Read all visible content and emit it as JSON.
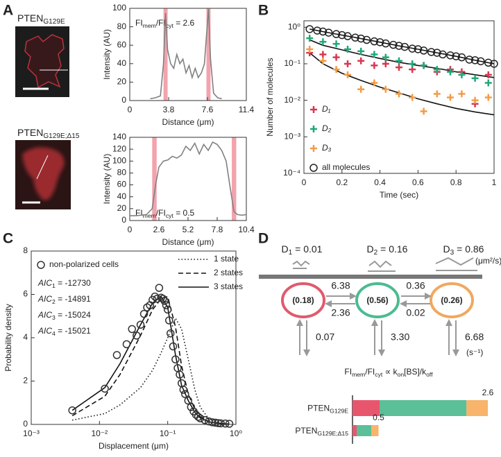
{
  "panel_labels": [
    "A",
    "B",
    "C",
    "D"
  ],
  "images": [
    {
      "label": [
        "PTEN",
        "G129E"
      ]
    },
    {
      "label": [
        "PTEN",
        "G129E;Δ15"
      ]
    }
  ],
  "chart_data": [
    {
      "type": "line",
      "x_label": "Distance (μm)",
      "y_label": "Intensity (AU)",
      "annotation": [
        "FI",
        "mem",
        "/FI",
        "cyt",
        " = 2.6"
      ],
      "xlim": [
        0,
        11.4
      ],
      "xticks": [
        0,
        3.8,
        7.6,
        11.4
      ],
      "ylim": [
        0,
        100
      ],
      "yticks": [
        0,
        20,
        40,
        60,
        80,
        100
      ],
      "highlight_x": [
        [
          3.3,
          3.7
        ],
        [
          7.5,
          7.9
        ]
      ],
      "highlight_color": "#f2a3ad",
      "series": [
        {
          "color": "#808080",
          "x": [
            2.0,
            2.5,
            3.0,
            3.3,
            3.5,
            3.7,
            4.0,
            4.3,
            4.6,
            4.9,
            5.2,
            5.5,
            5.8,
            6.1,
            6.4,
            6.7,
            7.0,
            7.3,
            7.5,
            7.7,
            7.9,
            8.2,
            8.6,
            9.0
          ],
          "values": [
            2,
            3,
            5,
            40,
            95,
            55,
            40,
            35,
            50,
            40,
            45,
            30,
            38,
            25,
            35,
            25,
            30,
            40,
            70,
            100,
            45,
            8,
            3,
            2
          ]
        }
      ]
    },
    {
      "type": "line",
      "x_label": "Distance (μm)",
      "y_label": "Intensity (AU)",
      "annotation": [
        "FI",
        "mem",
        "/FI",
        "cyt",
        " = 0.5"
      ],
      "xlim": [
        0,
        10.4
      ],
      "xticks": [
        0,
        2.6,
        5.2,
        7.8,
        10.4
      ],
      "ylim": [
        0,
        140
      ],
      "yticks": [
        0,
        20,
        40,
        60,
        80,
        100,
        120,
        140
      ],
      "highlight_x": [
        [
          2.0,
          2.4
        ],
        [
          9.1,
          9.5
        ]
      ],
      "highlight_color": "#f2a3ad",
      "series": [
        {
          "color": "#808080",
          "x": [
            0,
            0.5,
            1,
            1.5,
            2,
            2.3,
            2.6,
            3,
            3.4,
            3.8,
            4.2,
            4.6,
            5,
            5.4,
            5.8,
            6.2,
            6.6,
            7,
            7.4,
            7.8,
            8.2,
            8.6,
            9,
            9.3,
            9.6,
            10,
            10.4
          ],
          "values": [
            8,
            8,
            9,
            10,
            20,
            60,
            90,
            100,
            102,
            108,
            105,
            110,
            125,
            118,
            130,
            112,
            128,
            118,
            132,
            128,
            118,
            100,
            50,
            15,
            10,
            9,
            10
          ]
        }
      ]
    },
    {
      "type": "scatter",
      "y_scale": "log",
      "x_label": "Time (sec)",
      "y_label": "Number of molecules",
      "xlim": [
        0,
        1
      ],
      "xticks": [
        0,
        0.2,
        0.4,
        0.6,
        0.8,
        1
      ],
      "ylim": [
        0.0001,
        1.5
      ],
      "yticks": [
        {
          "value": 0.0001,
          "label": "10⁻⁴"
        },
        {
          "value": 0.001,
          "label": "10⁻³"
        },
        {
          "value": 0.01,
          "label": "10⁻²"
        },
        {
          "value": 0.1,
          "label": "10⁻¹"
        },
        {
          "value": 1,
          "label": "10⁰"
        }
      ],
      "legend": "lower left",
      "series": [
        {
          "name": "D₁",
          "marker": "plus",
          "color": "#d8374f",
          "x": [
            0.03,
            0.1,
            0.17,
            0.23,
            0.3,
            0.37,
            0.43,
            0.5,
            0.57,
            0.63,
            0.7,
            0.77,
            0.83,
            0.9,
            0.97
          ],
          "values": [
            0.2,
            0.18,
            0.15,
            0.1,
            0.12,
            0.09,
            0.1,
            0.08,
            0.07,
            0.09,
            0.06,
            0.07,
            0.06,
            0.008,
            0.05
          ]
        },
        {
          "name": "D₂",
          "marker": "plus",
          "color": "#1fa878",
          "x": [
            0.03,
            0.1,
            0.17,
            0.23,
            0.3,
            0.37,
            0.43,
            0.5,
            0.57,
            0.63,
            0.7,
            0.77,
            0.83,
            0.9,
            0.97
          ],
          "values": [
            0.5,
            0.4,
            0.35,
            0.25,
            0.22,
            0.18,
            0.15,
            0.12,
            0.1,
            0.09,
            0.07,
            0.06,
            0.05,
            0.04,
            0.03
          ]
        },
        {
          "name": "D₃",
          "marker": "plus",
          "color": "#f29c45",
          "x": [
            0.03,
            0.1,
            0.17,
            0.23,
            0.3,
            0.37,
            0.43,
            0.5,
            0.57,
            0.63,
            0.7,
            0.77,
            0.83,
            0.9,
            0.97
          ],
          "values": [
            0.25,
            0.12,
            0.07,
            0.05,
            0.02,
            0.03,
            0.02,
            0.015,
            0.012,
            0.005,
            0.015,
            0.012,
            0.015,
            0.01,
            0.012
          ]
        },
        {
          "name": "all molecules",
          "marker": "circle",
          "color": "#222222",
          "x": [
            0.03,
            0.07,
            0.1,
            0.13,
            0.17,
            0.2,
            0.23,
            0.27,
            0.3,
            0.33,
            0.37,
            0.4,
            0.43,
            0.47,
            0.5,
            0.53,
            0.57,
            0.6,
            0.63,
            0.67,
            0.7,
            0.73,
            0.77,
            0.8,
            0.83,
            0.87,
            0.9,
            0.93,
            0.97,
            1.0
          ],
          "values": [
            0.89,
            0.81,
            0.76,
            0.71,
            0.65,
            0.61,
            0.57,
            0.52,
            0.49,
            0.45,
            0.41,
            0.39,
            0.36,
            0.33,
            0.31,
            0.29,
            0.26,
            0.25,
            0.23,
            0.21,
            0.2,
            0.18,
            0.17,
            0.16,
            0.15,
            0.13,
            0.125,
            0.117,
            0.107,
            0.1
          ]
        }
      ],
      "fit_lines": [
        {
          "color": "#111111",
          "x": [
            0.03,
            0.1,
            0.2,
            0.3,
            0.4,
            0.5,
            0.6,
            0.7,
            0.8,
            0.9,
            1.0
          ],
          "values": [
            0.89,
            0.76,
            0.61,
            0.49,
            0.39,
            0.31,
            0.25,
            0.2,
            0.16,
            0.125,
            0.1
          ]
        },
        {
          "color": "#111111",
          "x": [
            0.03,
            0.1,
            0.2,
            0.3,
            0.4,
            0.5,
            0.6,
            0.7,
            0.8,
            0.9,
            1.0
          ],
          "values": [
            0.45,
            0.32,
            0.24,
            0.18,
            0.14,
            0.11,
            0.09,
            0.075,
            0.06,
            0.05,
            0.042
          ]
        },
        {
          "color": "#111111",
          "x": [
            0.03,
            0.1,
            0.2,
            0.3,
            0.4,
            0.5,
            0.6,
            0.7,
            0.8,
            0.9,
            1.0
          ],
          "values": [
            0.2,
            0.1,
            0.055,
            0.035,
            0.023,
            0.016,
            0.011,
            0.008,
            0.006,
            0.0048,
            0.004
          ]
        }
      ]
    },
    {
      "type": "scatter",
      "x_scale": "log",
      "x_label": "Displacement (μm)",
      "y_label": "Probability density",
      "xlim": [
        0.001,
        1
      ],
      "xticks": [
        {
          "value": 0.001,
          "label": "10⁻³"
        },
        {
          "value": 0.01,
          "label": "10⁻²"
        },
        {
          "value": 0.1,
          "label": "10⁻¹"
        },
        {
          "value": 1,
          "label": "10⁰"
        }
      ],
      "ylim": [
        0,
        8
      ],
      "yticks": [
        0,
        2,
        4,
        6,
        8
      ],
      "legend": "upper left",
      "annotations": [
        [
          "AIC",
          "1",
          " = -12730"
        ],
        [
          "AIC",
          "2",
          " = -14891"
        ],
        [
          "AIC",
          "3",
          " = -15024"
        ],
        [
          "AIC",
          "4",
          " = -15021"
        ]
      ],
      "series": [
        {
          "name": "non-polarized cells",
          "marker": "circle",
          "color": "#333333",
          "x": [
            0.004,
            0.012,
            0.018,
            0.025,
            0.03,
            0.035,
            0.04,
            0.045,
            0.05,
            0.055,
            0.06,
            0.065,
            0.07,
            0.075,
            0.08,
            0.085,
            0.09,
            0.095,
            0.1,
            0.105,
            0.11,
            0.12,
            0.13,
            0.14,
            0.15,
            0.16,
            0.17,
            0.18,
            0.2,
            0.22,
            0.24,
            0.26,
            0.28,
            0.3,
            0.35,
            0.4,
            0.45,
            0.5,
            0.55,
            0.6,
            0.7,
            0.8
          ],
          "values": [
            0.65,
            1.65,
            3.2,
            3.7,
            4.4,
            4.1,
            4.6,
            5.1,
            5.4,
            5.5,
            5.75,
            5.9,
            5.8,
            6.3,
            5.85,
            5.8,
            5.7,
            5.5,
            5.3,
            4.8,
            4.2,
            3.6,
            3.0,
            2.6,
            2.3,
            1.9,
            1.6,
            1.4,
            1.1,
            0.8,
            0.6,
            0.45,
            0.35,
            0.28,
            0.2,
            0.14,
            0.1,
            0.08,
            0.06,
            0.05,
            0.04,
            0.03
          ]
        }
      ],
      "fit_lines": [
        {
          "name": "1 state",
          "dash": "dotted",
          "color": "#111111",
          "x": [
            0.004,
            0.012,
            0.02,
            0.04,
            0.06,
            0.08,
            0.1,
            0.13,
            0.16,
            0.2,
            0.25,
            0.3,
            0.4,
            0.6,
            0.8
          ],
          "values": [
            0.2,
            0.5,
            0.9,
            1.7,
            2.5,
            3.3,
            4.0,
            4.9,
            4.4,
            3.0,
            1.6,
            0.8,
            0.25,
            0.05,
            0.01
          ]
        },
        {
          "name": "2 states",
          "dash": "dashed",
          "color": "#111111",
          "x": [
            0.004,
            0.012,
            0.02,
            0.04,
            0.06,
            0.08,
            0.1,
            0.13,
            0.16,
            0.2,
            0.25,
            0.3,
            0.4,
            0.6,
            0.8
          ],
          "values": [
            0.4,
            1.3,
            2.3,
            4.1,
            5.3,
            5.8,
            5.9,
            4.5,
            2.7,
            1.4,
            0.7,
            0.35,
            0.12,
            0.03,
            0.01
          ]
        },
        {
          "name": "3 states",
          "dash": "solid",
          "color": "#111111",
          "x": [
            0.004,
            0.012,
            0.02,
            0.04,
            0.06,
            0.08,
            0.1,
            0.13,
            0.16,
            0.2,
            0.25,
            0.3,
            0.4,
            0.6,
            0.8
          ],
          "values": [
            0.65,
            1.7,
            2.8,
            4.6,
            5.6,
            5.9,
            5.4,
            3.2,
            1.8,
            1.1,
            0.55,
            0.3,
            0.12,
            0.04,
            0.02
          ]
        }
      ]
    },
    {
      "type": "stacked-bar-horizontal",
      "title": [
        "FI",
        "mem",
        "/FI",
        "cyt",
        " ∝ k",
        "on",
        "[BS]/k",
        "off"
      ],
      "categories": [
        [
          "PTEN",
          "G129E"
        ],
        [
          "PTEN",
          "G129E;Δ15"
        ]
      ],
      "series": [
        {
          "color": "#e8566e",
          "values": [
            0.52,
            0.08
          ]
        },
        {
          "color": "#5bbf97",
          "values": [
            1.67,
            0.28
          ]
        },
        {
          "color": "#f7b46a",
          "values": [
            0.41,
            0.14
          ]
        }
      ],
      "totals": [
        2.6,
        0.5
      ]
    }
  ],
  "diagram": {
    "diffusion": [
      [
        "D",
        "1",
        " = 0.01"
      ],
      [
        "D",
        "2",
        " = 0.16"
      ],
      [
        "D",
        "3",
        " = 0.86"
      ]
    ],
    "diffusion_unit": "(μm²/s)",
    "states": [
      {
        "fraction": "(0.18)",
        "color": "#e05a6e"
      },
      {
        "fraction": "(0.56)",
        "color": "#4cbb90"
      },
      {
        "fraction": "(0.26)",
        "color": "#f0a860"
      }
    ],
    "transitions": [
      "6.38",
      "2.36",
      "0.36",
      "0.02"
    ],
    "dissociation": [
      "0.07",
      "3.30",
      "6.68"
    ],
    "rate_unit": "(s⁻¹)"
  }
}
